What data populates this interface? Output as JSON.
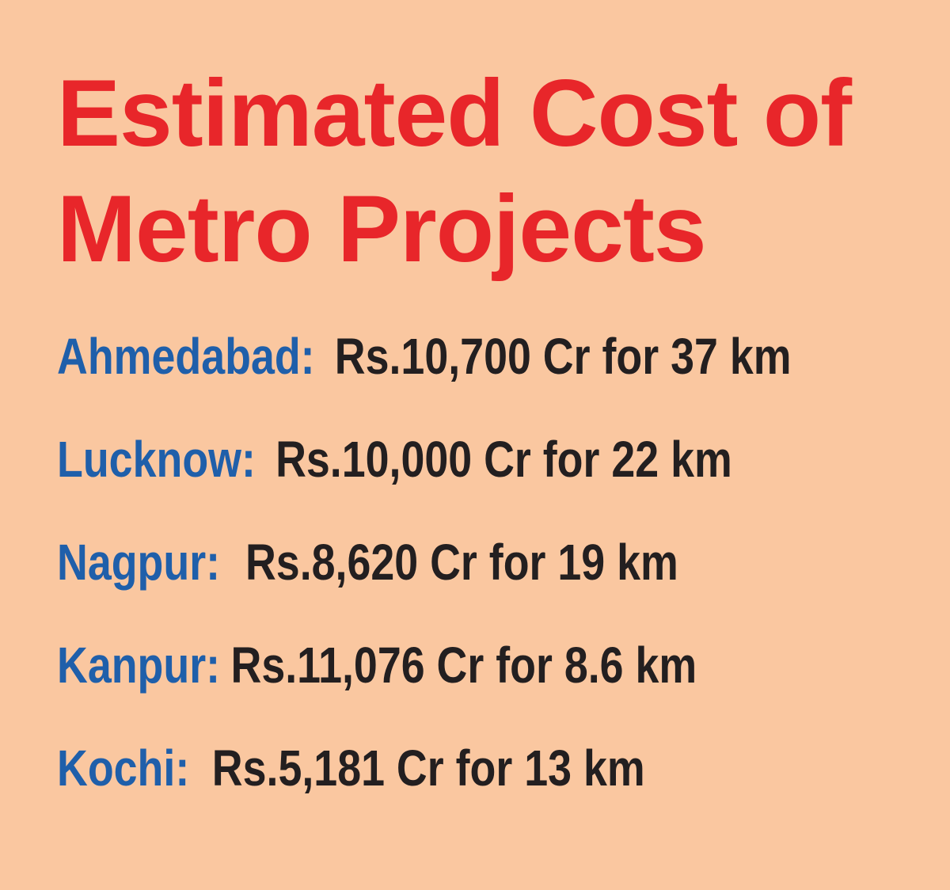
{
  "title": {
    "line1": "Estimated Cost of",
    "line2": "Metro Projects"
  },
  "projects": [
    {
      "city": "Ahmedabad:",
      "cost": "Rs.10,700 Cr for 37 km"
    },
    {
      "city": "Lucknow:",
      "cost": "Rs.10,000 Cr for 22 km"
    },
    {
      "city": "Nagpur:",
      "cost": "Rs.8,620 Cr for 19 km"
    },
    {
      "city": "Kanpur:",
      "cost": "Rs.11,076 Cr for 8.6 km"
    },
    {
      "city": "Kochi:",
      "cost": "Rs.5,181 Cr for 13 km"
    }
  ],
  "colors": {
    "background": "#fac7a0",
    "title": "#e8262a",
    "city": "#1f5faa",
    "cost": "#231f20"
  }
}
